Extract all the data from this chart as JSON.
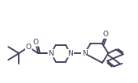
{
  "bg_color": "#ffffff",
  "line_color": "#3a3a5a",
  "lw": 1.3,
  "fs": 6.5,
  "figsize": [
    1.7,
    1.03
  ],
  "dpi": 100,
  "xlim": [
    0.0,
    11.5
  ],
  "ylim": [
    1.5,
    7.5
  ]
}
